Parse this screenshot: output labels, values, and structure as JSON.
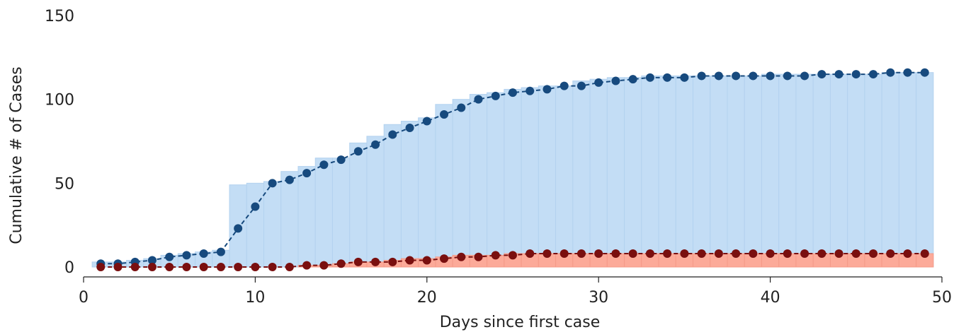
{
  "chart_data": {
    "type": "bar",
    "xlabel": "Days since first case",
    "ylabel": "Cumulative # of Cases",
    "xlim": [
      0,
      50
    ],
    "ylim": [
      0,
      150
    ],
    "xticks": [
      0,
      10,
      20,
      30,
      40,
      50
    ],
    "yticks": [
      0,
      50,
      100,
      150
    ],
    "grid": false,
    "days": [
      1,
      2,
      3,
      4,
      5,
      6,
      7,
      8,
      9,
      10,
      11,
      12,
      13,
      14,
      15,
      16,
      17,
      18,
      19,
      20,
      21,
      22,
      23,
      24,
      25,
      26,
      27,
      28,
      29,
      30,
      31,
      32,
      33,
      34,
      35,
      36,
      37,
      38,
      39,
      40,
      41,
      42,
      43,
      44,
      45,
      46,
      47,
      48,
      49
    ],
    "series": [
      {
        "color": "#c3ddf5",
        "line_color": "#174a7e",
        "values": [
          3,
          3,
          4,
          5,
          7,
          8,
          9,
          10,
          49,
          50,
          51,
          57,
          60,
          65,
          65,
          74,
          78,
          85,
          87,
          89,
          97,
          100,
          103,
          104,
          106,
          107,
          108,
          108,
          111,
          112,
          113,
          113,
          114,
          114,
          114,
          114,
          114,
          114,
          114,
          115,
          115,
          115,
          115,
          115,
          115,
          115,
          116,
          116,
          116
        ],
        "cumulative": [
          2,
          2,
          3,
          4,
          6,
          7,
          8,
          9,
          23,
          36,
          50,
          52,
          56,
          61,
          64,
          69,
          73,
          79,
          83,
          87,
          91,
          95,
          100,
          102,
          104,
          105,
          106,
          108,
          108,
          110,
          111,
          112,
          113,
          113,
          113,
          114,
          114,
          114,
          114,
          114,
          114,
          114,
          115,
          115,
          115,
          115,
          116,
          116,
          116
        ]
      },
      {
        "color": "#fcaa99",
        "line_color": "#7a0f0f",
        "values": [
          0,
          0,
          0,
          0,
          0,
          0,
          0,
          0,
          0,
          0,
          0,
          0,
          1,
          1,
          2,
          3,
          3,
          4,
          5,
          5,
          6,
          7,
          7,
          7,
          8,
          8,
          8,
          8,
          8,
          8,
          8,
          8,
          8,
          8,
          8,
          8,
          8,
          8,
          8,
          8,
          8,
          8,
          8,
          8,
          8,
          8,
          8,
          8,
          8
        ],
        "cumulative": [
          0,
          0,
          0,
          0,
          0,
          0,
          0,
          0,
          0,
          0,
          0,
          0,
          1,
          1,
          2,
          3,
          3,
          3,
          4,
          4,
          5,
          6,
          6,
          7,
          7,
          8,
          8,
          8,
          8,
          8,
          8,
          8,
          8,
          8,
          8,
          8,
          8,
          8,
          8,
          8,
          8,
          8,
          8,
          8,
          8,
          8,
          8,
          8,
          8
        ]
      }
    ]
  }
}
